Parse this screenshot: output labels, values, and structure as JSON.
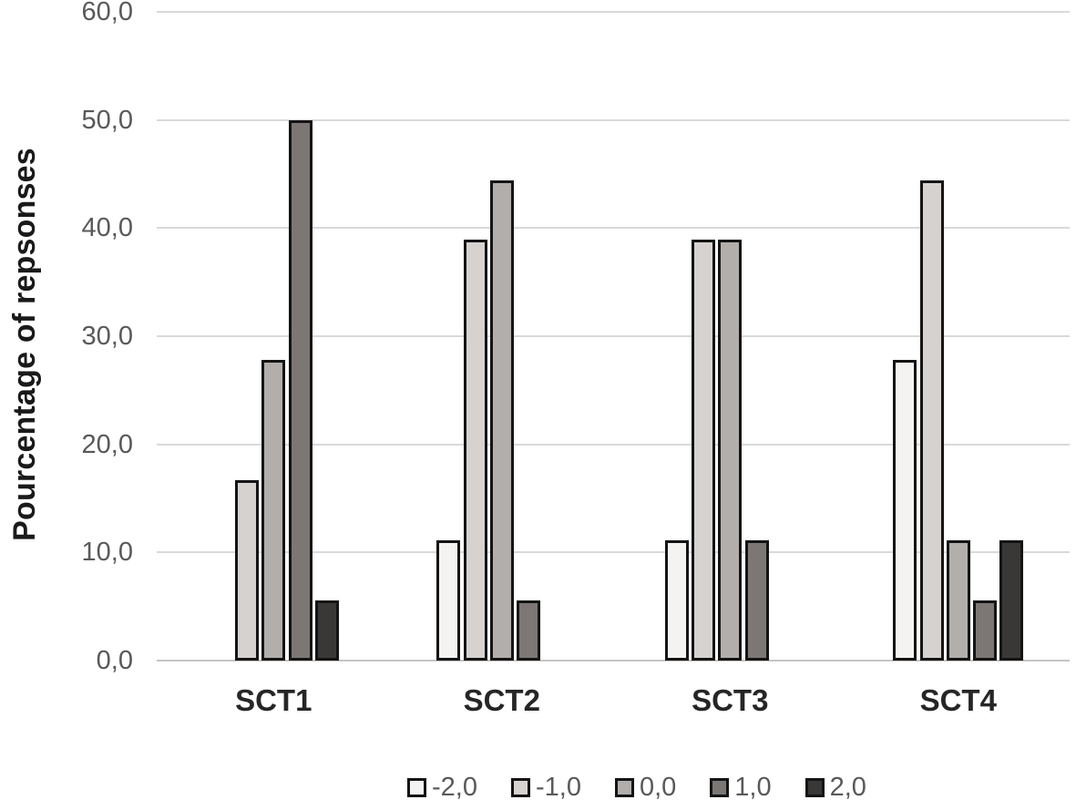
{
  "chart_data": {
    "type": "bar",
    "title": "",
    "ylabel": "Pourcentage of repsonses",
    "xlabel": "",
    "categories": [
      "SCT1",
      "SCT2",
      "SCT3",
      "SCT4"
    ],
    "series": [
      {
        "name": "-2,0",
        "color": "#f4f3f1",
        "values": [
          0,
          11.1,
          11.1,
          27.8
        ]
      },
      {
        "name": "-1,0",
        "color": "#d5d2d0",
        "values": [
          16.7,
          38.9,
          38.9,
          44.4
        ]
      },
      {
        "name": "0,0",
        "color": "#b2aeab",
        "values": [
          27.8,
          44.4,
          38.9,
          11.1
        ]
      },
      {
        "name": "1,0",
        "color": "#7c7775",
        "values": [
          50.0,
          5.6,
          11.1,
          5.6
        ]
      },
      {
        "name": "2,0",
        "color": "#3a3837",
        "values": [
          5.6,
          0,
          0,
          11.1
        ]
      }
    ],
    "ylim": [
      0,
      60
    ],
    "ytick_step": 10,
    "yticklabels": [
      "0,0",
      "10,0",
      "20,0",
      "30,0",
      "40,0",
      "50,0",
      "60,0"
    ],
    "grid": true,
    "legend_position": "bottom",
    "colors": {
      "bar_border": "#141414",
      "gridline": "#d9d9d9",
      "axis_line": "#c7c5c3",
      "tick_label": "#595959",
      "category_label": "#262626",
      "ylabel": "#1a1a1a",
      "legend_label": "#595959",
      "background": "#ffffff"
    }
  }
}
